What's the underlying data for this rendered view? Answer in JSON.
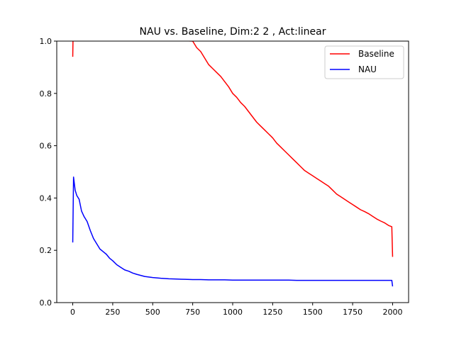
{
  "chart_data": {
    "type": "line",
    "title": "NAU vs. Baseline, Dim:2 2 , Act:linear",
    "xlabel": "",
    "ylabel": "",
    "xlim": [
      -100,
      2100
    ],
    "ylim": [
      0.0,
      1.0
    ],
    "x_ticks": [
      0,
      250,
      500,
      750,
      1000,
      1250,
      1500,
      1750,
      2000
    ],
    "y_ticks": [
      "0.0",
      "0.2",
      "0.4",
      "0.6",
      "0.8",
      "1.0"
    ],
    "grid": false,
    "legend_position": "top-right",
    "series": [
      {
        "name": "Baseline",
        "color": "#ff0000",
        "points": [
          [
            0,
            0.94
          ],
          [
            2,
            1.02
          ],
          [
            750,
            1.0
          ],
          [
            775,
            0.975
          ],
          [
            800,
            0.96
          ],
          [
            825,
            0.935
          ],
          [
            850,
            0.91
          ],
          [
            875,
            0.895
          ],
          [
            900,
            0.88
          ],
          [
            925,
            0.865
          ],
          [
            950,
            0.845
          ],
          [
            975,
            0.825
          ],
          [
            1000,
            0.8
          ],
          [
            1025,
            0.785
          ],
          [
            1050,
            0.765
          ],
          [
            1075,
            0.75
          ],
          [
            1100,
            0.73
          ],
          [
            1125,
            0.71
          ],
          [
            1150,
            0.69
          ],
          [
            1175,
            0.675
          ],
          [
            1200,
            0.66
          ],
          [
            1225,
            0.645
          ],
          [
            1250,
            0.63
          ],
          [
            1275,
            0.61
          ],
          [
            1300,
            0.595
          ],
          [
            1325,
            0.58
          ],
          [
            1350,
            0.565
          ],
          [
            1375,
            0.55
          ],
          [
            1400,
            0.535
          ],
          [
            1425,
            0.52
          ],
          [
            1450,
            0.505
          ],
          [
            1475,
            0.495
          ],
          [
            1500,
            0.485
          ],
          [
            1525,
            0.475
          ],
          [
            1550,
            0.465
          ],
          [
            1575,
            0.455
          ],
          [
            1600,
            0.445
          ],
          [
            1625,
            0.43
          ],
          [
            1650,
            0.415
          ],
          [
            1675,
            0.405
          ],
          [
            1700,
            0.395
          ],
          [
            1725,
            0.385
          ],
          [
            1750,
            0.375
          ],
          [
            1775,
            0.365
          ],
          [
            1800,
            0.355
          ],
          [
            1825,
            0.348
          ],
          [
            1850,
            0.34
          ],
          [
            1875,
            0.33
          ],
          [
            1900,
            0.32
          ],
          [
            1925,
            0.312
          ],
          [
            1950,
            0.305
          ],
          [
            1975,
            0.295
          ],
          [
            1995,
            0.29
          ],
          [
            2000,
            0.175
          ]
        ]
      },
      {
        "name": "NAU",
        "color": "#0000ff",
        "points": [
          [
            0,
            0.23
          ],
          [
            5,
            0.48
          ],
          [
            15,
            0.43
          ],
          [
            25,
            0.41
          ],
          [
            40,
            0.395
          ],
          [
            55,
            0.35
          ],
          [
            70,
            0.33
          ],
          [
            90,
            0.31
          ],
          [
            110,
            0.275
          ],
          [
            130,
            0.245
          ],
          [
            150,
            0.225
          ],
          [
            170,
            0.205
          ],
          [
            190,
            0.195
          ],
          [
            210,
            0.185
          ],
          [
            230,
            0.17
          ],
          [
            250,
            0.16
          ],
          [
            275,
            0.145
          ],
          [
            300,
            0.135
          ],
          [
            325,
            0.125
          ],
          [
            350,
            0.12
          ],
          [
            375,
            0.113
          ],
          [
            400,
            0.108
          ],
          [
            425,
            0.104
          ],
          [
            450,
            0.1
          ],
          [
            475,
            0.098
          ],
          [
            500,
            0.096
          ],
          [
            550,
            0.093
          ],
          [
            600,
            0.091
          ],
          [
            650,
            0.09
          ],
          [
            700,
            0.089
          ],
          [
            750,
            0.088
          ],
          [
            800,
            0.088
          ],
          [
            850,
            0.087
          ],
          [
            900,
            0.087
          ],
          [
            950,
            0.087
          ],
          [
            1000,
            0.086
          ],
          [
            1050,
            0.086
          ],
          [
            1100,
            0.086
          ],
          [
            1150,
            0.086
          ],
          [
            1200,
            0.086
          ],
          [
            1250,
            0.086
          ],
          [
            1300,
            0.086
          ],
          [
            1350,
            0.086
          ],
          [
            1400,
            0.085
          ],
          [
            1450,
            0.085
          ],
          [
            1500,
            0.085
          ],
          [
            1550,
            0.085
          ],
          [
            1600,
            0.085
          ],
          [
            1650,
            0.085
          ],
          [
            1700,
            0.085
          ],
          [
            1750,
            0.085
          ],
          [
            1800,
            0.085
          ],
          [
            1850,
            0.085
          ],
          [
            1900,
            0.085
          ],
          [
            1950,
            0.085
          ],
          [
            1995,
            0.085
          ],
          [
            2000,
            0.062
          ]
        ]
      }
    ]
  }
}
